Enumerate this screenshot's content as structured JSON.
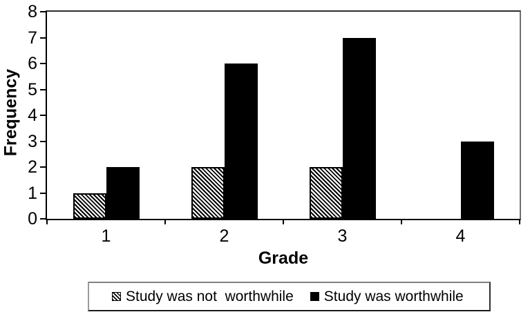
{
  "chart_data": {
    "type": "bar",
    "title": "",
    "categories": [
      "1",
      "2",
      "3",
      "4"
    ],
    "series": [
      {
        "name": "Study was not  worthwhile",
        "pattern": "diagonal-hatch",
        "color": "#000000",
        "values": [
          1,
          2,
          2,
          0
        ]
      },
      {
        "name": "Study was worthwhile",
        "pattern": "solid",
        "color": "#000000",
        "values": [
          2,
          6,
          7,
          3
        ]
      }
    ],
    "xlabel": "Grade",
    "ylabel": "Frequency",
    "ylim": [
      0,
      8
    ],
    "yticks": [
      0,
      1,
      2,
      3,
      4,
      5,
      6,
      7,
      8
    ],
    "grid": false,
    "legend_position": "bottom",
    "background_color": "#ffffff",
    "bar_color": "#000000"
  }
}
